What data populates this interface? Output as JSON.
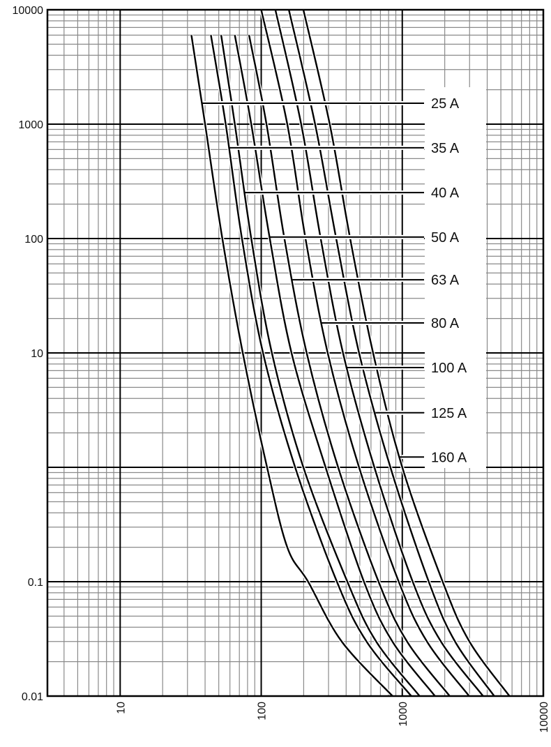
{
  "chart_data": {
    "type": "line",
    "title": "",
    "xlabel": "",
    "ylabel": "",
    "x_scale": "log",
    "y_scale": "log",
    "xlim": [
      3.05,
      10000
    ],
    "ylim": [
      0.01,
      10000
    ],
    "grid": true,
    "line_color": "#000000",
    "x_ticks": [
      {
        "value": 10,
        "label": "10"
      },
      {
        "value": 100,
        "label": "100"
      },
      {
        "value": 1000,
        "label": "1000"
      },
      {
        "value": 10000,
        "label": "10000"
      }
    ],
    "y_ticks": [
      {
        "value": 10000,
        "label": "10000"
      },
      {
        "value": 1000,
        "label": "1000"
      },
      {
        "value": 100,
        "label": "100"
      },
      {
        "value": 10,
        "label": "10"
      },
      {
        "value": 1,
        "label": ""
      },
      {
        "value": 0.1,
        "label": "0.1"
      },
      {
        "value": 0.01,
        "label": "0.01"
      }
    ],
    "series": [
      {
        "name": "25 A",
        "label_time": 1524,
        "points": [
          [
            32,
            6000
          ],
          [
            40,
            1000
          ],
          [
            53,
            100
          ],
          [
            74,
            10
          ],
          [
            110,
            1
          ],
          [
            153,
            0.2
          ],
          [
            215,
            0.1
          ],
          [
            372,
            0.03
          ],
          [
            853,
            0.01
          ]
        ]
      },
      {
        "name": "35 A",
        "label_time": 621,
        "points": [
          [
            44,
            6000
          ],
          [
            56,
            1000
          ],
          [
            73,
            100
          ],
          [
            103,
            10
          ],
          [
            174,
            1
          ],
          [
            344,
            0.1
          ],
          [
            558,
            0.03
          ],
          [
            1159,
            0.01
          ]
        ]
      },
      {
        "name": "40 A",
        "label_time": 252,
        "points": [
          [
            52,
            6000
          ],
          [
            65,
            1000
          ],
          [
            85,
            100
          ],
          [
            119,
            10
          ],
          [
            199,
            1
          ],
          [
            408,
            0.1
          ],
          [
            653,
            0.03
          ],
          [
            1327,
            0.01
          ]
        ]
      },
      {
        "name": "50 A",
        "label_time": 103,
        "points": [
          [
            65,
            6000
          ],
          [
            85,
            1000
          ],
          [
            115,
            100
          ],
          [
            164,
            10
          ],
          [
            286,
            1
          ],
          [
            535,
            0.1
          ],
          [
            851,
            0.03
          ],
          [
            1706,
            0.01
          ]
        ]
      },
      {
        "name": "63 A",
        "label_time": 43.6,
        "points": [
          [
            82,
            6000
          ],
          [
            109,
            1000
          ],
          [
            146,
            100
          ],
          [
            210,
            10
          ],
          [
            351,
            1
          ],
          [
            679,
            0.1
          ],
          [
            1081,
            0.03
          ],
          [
            2168,
            0.01
          ]
        ]
      },
      {
        "name": "80 A",
        "label_time": 18.3,
        "points": [
          [
            100,
            10000
          ],
          [
            153,
            1000
          ],
          [
            206,
            100
          ],
          [
            296,
            10
          ],
          [
            494,
            1
          ],
          [
            944,
            0.1
          ],
          [
            1496,
            0.03
          ],
          [
            2979,
            0.01
          ]
        ]
      },
      {
        "name": "100 A",
        "label_time": 7.45,
        "points": [
          [
            126,
            10000
          ],
          [
            192,
            1000
          ],
          [
            264,
            100
          ],
          [
            380,
            10
          ],
          [
            634,
            1
          ],
          [
            1186,
            0.1
          ],
          [
            1879,
            0.03
          ],
          [
            3741,
            0.01
          ]
        ]
      },
      {
        "name": "125 A",
        "label_time": 3.0,
        "points": [
          [
            157,
            10000
          ],
          [
            241,
            1000
          ],
          [
            340,
            100
          ],
          [
            494,
            10
          ],
          [
            824,
            1
          ],
          [
            1541,
            0.1
          ],
          [
            2366,
            0.03
          ],
          [
            4487,
            0.01
          ]
        ]
      },
      {
        "name": "160 A",
        "label_time": 1.23,
        "points": [
          [
            199,
            10000
          ],
          [
            306,
            1000
          ],
          [
            427,
            100
          ],
          [
            621,
            10
          ],
          [
            1000,
            1
          ],
          [
            1933,
            0.1
          ],
          [
            2992,
            0.03
          ],
          [
            5754,
            0.01
          ]
        ]
      }
    ]
  }
}
